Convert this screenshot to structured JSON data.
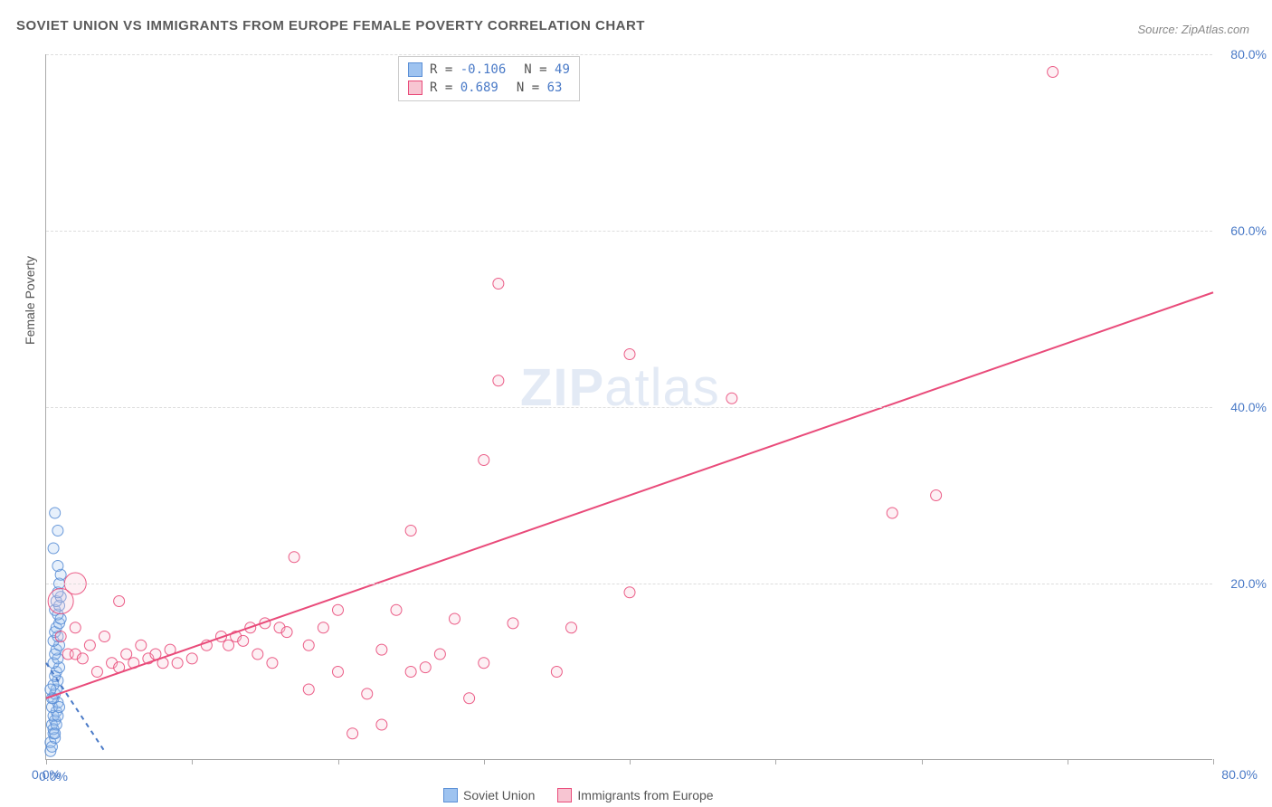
{
  "title": "SOVIET UNION VS IMMIGRANTS FROM EUROPE FEMALE POVERTY CORRELATION CHART",
  "source": "Source: ZipAtlas.com",
  "ylabel": "Female Poverty",
  "watermark_a": "ZIP",
  "watermark_b": "atlas",
  "chart": {
    "type": "scatter",
    "background_color": "#ffffff",
    "grid_color": "#dddddd",
    "grid_dash": "4,4",
    "axis_color": "#aaaaaa",
    "tick_label_color": "#4a7ac7",
    "label_fontsize": 14,
    "title_fontsize": 15,
    "xlim": [
      0,
      80
    ],
    "ylim": [
      0,
      80
    ],
    "yticks": [
      0,
      20,
      40,
      60,
      80
    ],
    "ytick_labels": [
      "0.0%",
      "20.0%",
      "40.0%",
      "60.0%",
      "80.0%"
    ],
    "xticks": [
      0,
      10,
      20,
      30,
      40,
      50,
      60,
      70,
      80
    ],
    "xtick_labels_visible": {
      "0": "0.0%",
      "80": "80.0%"
    },
    "marker_style": "circle",
    "marker_radius_base": 6,
    "marker_fill_opacity": 0.25,
    "marker_stroke_opacity": 0.9,
    "line_width": 2,
    "series": [
      {
        "name": "Soviet Union",
        "color_fill": "#9ec3f0",
        "color_stroke": "#5b8fd6",
        "R": -0.106,
        "N": 49,
        "trend_line": {
          "x1": 0,
          "y1": 11,
          "x2": 4,
          "y2": 1,
          "dashed": true,
          "color": "#4a7ac7"
        },
        "points": [
          [
            0.3,
            2
          ],
          [
            0.5,
            3
          ],
          [
            0.4,
            4
          ],
          [
            0.6,
            4.5
          ],
          [
            0.5,
            5
          ],
          [
            0.7,
            5.5
          ],
          [
            0.4,
            6
          ],
          [
            0.8,
            6.5
          ],
          [
            0.5,
            7
          ],
          [
            0.6,
            7.5
          ],
          [
            0.7,
            8
          ],
          [
            0.5,
            8.5
          ],
          [
            0.8,
            9
          ],
          [
            0.6,
            9.5
          ],
          [
            0.7,
            10
          ],
          [
            0.9,
            10.5
          ],
          [
            0.5,
            11
          ],
          [
            0.8,
            11.5
          ],
          [
            0.6,
            12
          ],
          [
            0.7,
            12.5
          ],
          [
            0.9,
            13
          ],
          [
            0.5,
            13.5
          ],
          [
            0.8,
            14
          ],
          [
            0.6,
            14.5
          ],
          [
            0.7,
            15
          ],
          [
            0.9,
            15.5
          ],
          [
            1.0,
            16
          ],
          [
            0.8,
            16.5
          ],
          [
            0.6,
            17
          ],
          [
            0.9,
            17.5
          ],
          [
            0.7,
            18
          ],
          [
            1.0,
            18.5
          ],
          [
            0.8,
            19
          ],
          [
            0.9,
            20
          ],
          [
            1.0,
            21
          ],
          [
            0.8,
            22
          ],
          [
            0.5,
            24
          ],
          [
            0.8,
            26
          ],
          [
            0.6,
            28
          ],
          [
            0.3,
            1
          ],
          [
            0.4,
            1.5
          ],
          [
            0.6,
            2.5
          ],
          [
            0.5,
            3.5
          ],
          [
            0.7,
            4
          ],
          [
            0.8,
            5
          ],
          [
            0.9,
            6
          ],
          [
            0.4,
            7
          ],
          [
            0.3,
            8
          ],
          [
            0.6,
            3
          ]
        ]
      },
      {
        "name": "Immigrants from Europe",
        "color_fill": "#f7c5d2",
        "color_stroke": "#e94b7a",
        "R": 0.689,
        "N": 63,
        "trend_line": {
          "x1": 0,
          "y1": 7,
          "x2": 80,
          "y2": 53,
          "dashed": false,
          "color": "#e94b7a"
        },
        "points": [
          [
            1,
            14
          ],
          [
            1,
            18,
            14
          ],
          [
            1.5,
            12
          ],
          [
            2,
            15
          ],
          [
            2,
            12
          ],
          [
            2.5,
            11.5
          ],
          [
            3,
            13
          ],
          [
            3.5,
            10
          ],
          [
            4,
            14
          ],
          [
            4.5,
            11
          ],
          [
            5,
            18
          ],
          [
            5,
            10.5
          ],
          [
            5.5,
            12
          ],
          [
            6,
            11
          ],
          [
            6.5,
            13
          ],
          [
            7,
            11.5
          ],
          [
            7.5,
            12
          ],
          [
            8,
            11
          ],
          [
            8.5,
            12.5
          ],
          [
            9,
            11
          ],
          [
            10,
            11.5
          ],
          [
            11,
            13
          ],
          [
            12,
            14
          ],
          [
            12.5,
            13
          ],
          [
            13,
            14
          ],
          [
            13.5,
            13.5
          ],
          [
            14,
            15
          ],
          [
            14.5,
            12
          ],
          [
            15,
            15.5
          ],
          [
            15.5,
            11
          ],
          [
            16,
            15
          ],
          [
            16.5,
            14.5
          ],
          [
            17,
            23
          ],
          [
            18,
            13
          ],
          [
            18,
            8
          ],
          [
            19,
            15
          ],
          [
            20,
            10
          ],
          [
            20,
            17
          ],
          [
            21,
            3
          ],
          [
            22,
            7.5
          ],
          [
            23,
            12.5
          ],
          [
            23,
            4
          ],
          [
            24,
            17
          ],
          [
            25,
            10
          ],
          [
            25,
            26
          ],
          [
            26,
            10.5
          ],
          [
            27,
            12
          ],
          [
            28,
            16
          ],
          [
            29,
            7
          ],
          [
            30,
            11
          ],
          [
            30,
            34
          ],
          [
            31,
            43
          ],
          [
            31,
            54
          ],
          [
            32,
            15.5
          ],
          [
            35,
            10
          ],
          [
            36,
            15
          ],
          [
            40,
            19
          ],
          [
            40,
            46
          ],
          [
            47,
            41
          ],
          [
            58,
            28
          ],
          [
            61,
            30
          ],
          [
            69,
            78
          ],
          [
            2,
            20,
            12
          ]
        ]
      }
    ]
  },
  "legend_stats": [
    {
      "series_idx": 0,
      "R_text": "-0.106",
      "N_text": "49"
    },
    {
      "series_idx": 1,
      "R_text": "0.689",
      "N_text": "63"
    }
  ],
  "bottom_legend": [
    {
      "series_idx": 0,
      "label": "Soviet Union"
    },
    {
      "series_idx": 1,
      "label": "Immigrants from Europe"
    }
  ]
}
